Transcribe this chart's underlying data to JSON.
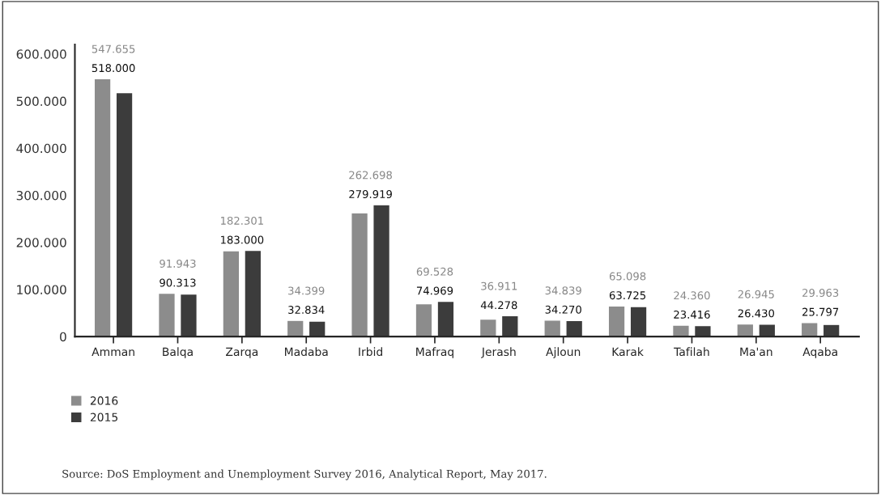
{
  "chart_data": {
    "type": "bar",
    "categories": [
      "Amman",
      "Balqa",
      "Zarqa",
      "Madaba",
      "Irbid",
      "Mafraq",
      "Jerash",
      "Ajloun",
      "Karak",
      "Tafilah",
      "Ma'an",
      "Aqaba"
    ],
    "series": [
      {
        "name": "2016",
        "color": "#8c8c8c",
        "values": [
          547655,
          91943,
          182301,
          34399,
          262698,
          69528,
          36911,
          34839,
          65098,
          24360,
          26945,
          29963
        ],
        "value_labels": [
          "547.655",
          "91.943",
          "182.301",
          "34.399",
          "262.698",
          "69.528",
          "36.911",
          "34.839",
          "65.098",
          "24.360",
          "26.945",
          "29.963"
        ]
      },
      {
        "name": "2015",
        "color": "#3c3c3c",
        "values": [
          518000,
          90313,
          183000,
          32834,
          279919,
          74969,
          44278,
          34270,
          63725,
          23416,
          26430,
          25797
        ],
        "value_labels": [
          "518.000",
          "90.313",
          "183.000",
          "32.834",
          "279.919",
          "74.969",
          "44.278",
          "34.270",
          "63.725",
          "23.416",
          "26.430",
          "25.797"
        ]
      }
    ],
    "ylim": [
      0,
      620000
    ],
    "yticks": [
      {
        "value": 0,
        "label": "0"
      },
      {
        "value": 100000,
        "label": "100.000"
      },
      {
        "value": 200000,
        "label": "200.000"
      },
      {
        "value": 300000,
        "label": "300.000"
      },
      {
        "value": 400000,
        "label": "400.000"
      },
      {
        "value": 500000,
        "label": "500.000"
      },
      {
        "value": 600000,
        "label": "600.000"
      }
    ],
    "legend": "bottom left",
    "grid": false,
    "annotations": [
      "Source: DoS Employment and Unemployment Survey 2016, Analytical Report, May 2017."
    ]
  }
}
